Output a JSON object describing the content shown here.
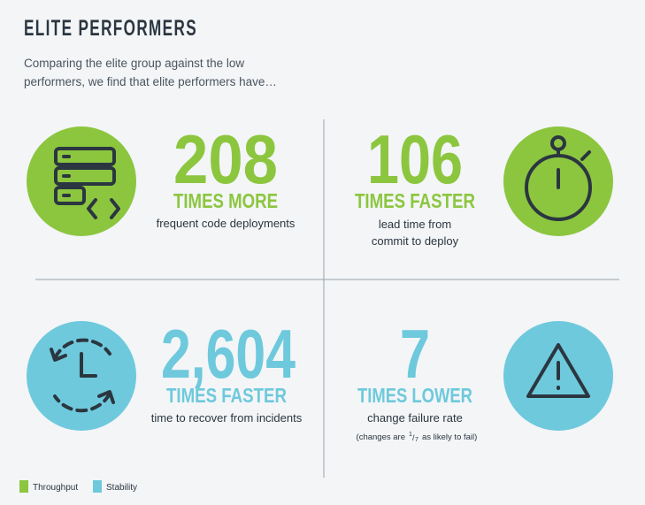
{
  "header": {
    "title": "ELITE PERFORMERS",
    "subtitle": [
      "Comparing the elite group against the low",
      "performers, we find that elite performers have…"
    ]
  },
  "stats": [
    {
      "number": "208",
      "unit": "TIMES MORE",
      "description": [
        "frequent code deployments"
      ],
      "category": "throughput"
    },
    {
      "number": "106",
      "unit": "TIMES FASTER",
      "description": [
        "lead time from",
        "commit to deploy"
      ],
      "category": "throughput"
    },
    {
      "number": "2,604",
      "unit": "TIMES FASTER",
      "description": [
        "time to recover from incidents"
      ],
      "category": "stability"
    },
    {
      "number": "7",
      "unit": "TIMES LOWER",
      "description": [
        "change failure rate"
      ],
      "category": "stability",
      "note": {
        "before": "(changes are",
        "numerator": "1",
        "denominator": "7",
        "after": "as likely to fail)"
      }
    }
  ],
  "legend": [
    {
      "label": "Throughput",
      "color": "#8cc63f"
    },
    {
      "label": "Stability",
      "color": "#6ec9dc"
    }
  ]
}
